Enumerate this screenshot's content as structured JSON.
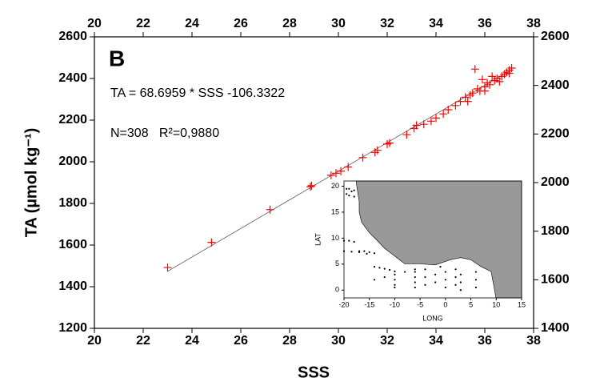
{
  "chart_data": [
    {
      "type": "scatter",
      "annotation_letter": "B",
      "equation": "TA = 68.6959 * SSS -106.3322",
      "stats": "N=308   R²=0,9880",
      "xlabel": "SSS",
      "ylabel": "TA (µmol kg⁻¹)",
      "xlim": [
        20,
        38
      ],
      "xticks": [
        20,
        22,
        24,
        26,
        28,
        30,
        32,
        34,
        36,
        38
      ],
      "ylim": [
        1200,
        2600
      ],
      "yticks": [
        1200,
        1400,
        1600,
        1800,
        2000,
        2200,
        2400,
        2600
      ],
      "x2ticks": [
        20,
        22,
        24,
        26,
        28,
        30,
        32,
        34,
        36,
        38
      ],
      "y2lim": [
        1400,
        2600
      ],
      "y2ticks": [
        1400,
        1600,
        1800,
        2000,
        2200,
        2400,
        2600
      ],
      "series": [
        {
          "color": "#ff0000",
          "x": [
            23,
            24.8,
            27.2,
            28.85,
            28.9,
            29.7,
            29.9,
            30.1,
            30.4,
            31,
            31.5,
            31.6,
            32,
            32.1,
            32.8,
            33.1,
            33.2,
            33.5,
            33.8,
            34,
            34.3,
            34.5,
            34.8,
            35,
            35.2,
            35.3,
            35.4,
            35.5,
            35.6,
            35.7,
            35.8,
            35.9,
            36,
            36,
            36.1,
            36.2,
            36.3,
            36.4,
            36.5,
            36.6,
            36.7,
            36.8,
            36.9,
            37,
            37,
            37.1
          ],
          "values": [
            1492,
            1613,
            1770,
            1880,
            1885,
            1935,
            1945,
            1955,
            1975,
            2020,
            2045,
            2055,
            2085,
            2090,
            2130,
            2160,
            2175,
            2180,
            2195,
            2210,
            2230,
            2250,
            2270,
            2290,
            2310,
            2290,
            2320,
            2330,
            2445,
            2350,
            2340,
            2395,
            2360,
            2340,
            2380,
            2370,
            2410,
            2390,
            2400,
            2385,
            2410,
            2420,
            2430,
            2440,
            2425,
            2450
          ]
        }
      ],
      "fit_line": {
        "color": "#555555",
        "x": [
          23,
          37.1
        ],
        "values": [
          1473.7,
          2442.3
        ]
      }
    },
    {
      "type": "scatter",
      "xlabel": "LONG",
      "ylabel": "LAT",
      "xlim": [
        -20,
        15
      ],
      "xticks": [
        -20,
        -15,
        -10,
        -5,
        0,
        5,
        10,
        15
      ],
      "ylim": [
        -1.5,
        21
      ],
      "yticks": [
        0,
        5,
        10,
        15,
        20
      ],
      "series": [
        {
          "color": "#000000",
          "x": [
            -19.5,
            -19,
            -18.5,
            -18,
            -19.5,
            -19,
            -18,
            -20,
            -19,
            -18,
            -17,
            -16,
            -15,
            -14,
            -20,
            -18.5,
            -17,
            -15.5,
            -14,
            -13,
            -12,
            -11,
            -10,
            -14,
            -12,
            -10,
            -8,
            -6,
            -10,
            -10,
            -10,
            -6,
            -6,
            -6,
            -6,
            -4,
            -4,
            -4,
            -2,
            -2,
            -1,
            0,
            0,
            0,
            2,
            2,
            2,
            3,
            3,
            3,
            6,
            6,
            6
          ],
          "values": [
            19.5,
            19.5,
            19,
            19.2,
            18.5,
            18.2,
            18,
            9.5,
            9.5,
            9.3,
            7.5,
            7.5,
            7.3,
            7.1,
            7.5,
            7.4,
            7.3,
            7,
            4.5,
            4.3,
            4.1,
            3.9,
            3.6,
            2,
            2.5,
            3,
            3.5,
            4,
            0.5,
            1,
            2,
            0.5,
            1.5,
            2.5,
            3.5,
            1,
            2.5,
            4,
            1.5,
            3,
            4.5,
            0.5,
            2,
            3.5,
            1,
            2.5,
            4,
            0,
            1.5,
            3,
            0.5,
            2,
            3.5
          ]
        }
      ]
    }
  ]
}
